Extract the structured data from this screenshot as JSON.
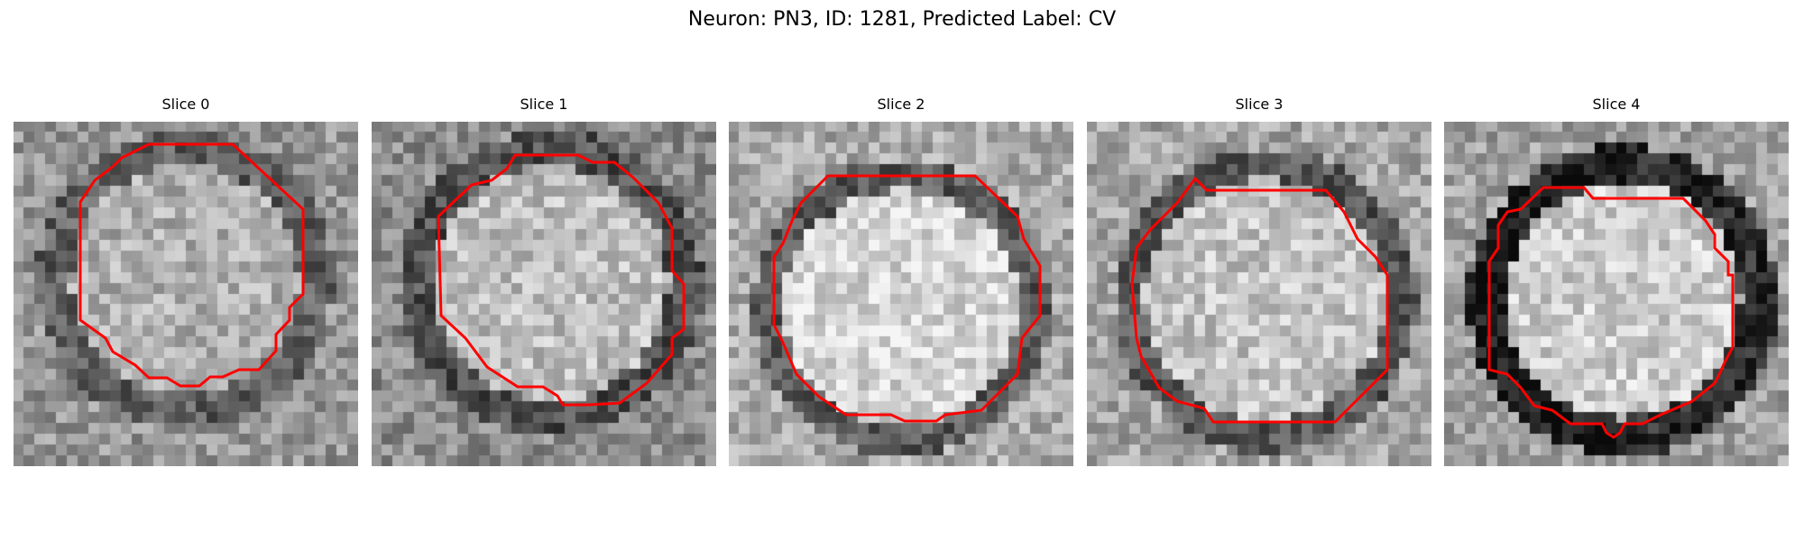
{
  "figure": {
    "suptitle": "Neuron: PN3, ID: 1281, Predicted Label: CV",
    "outline_color": "#ff0000",
    "panels": [
      {
        "title": "Slice 0"
      },
      {
        "title": "Slice 1"
      },
      {
        "title": "Slice 2"
      },
      {
        "title": "Slice 3"
      },
      {
        "title": "Slice 4"
      }
    ]
  }
}
